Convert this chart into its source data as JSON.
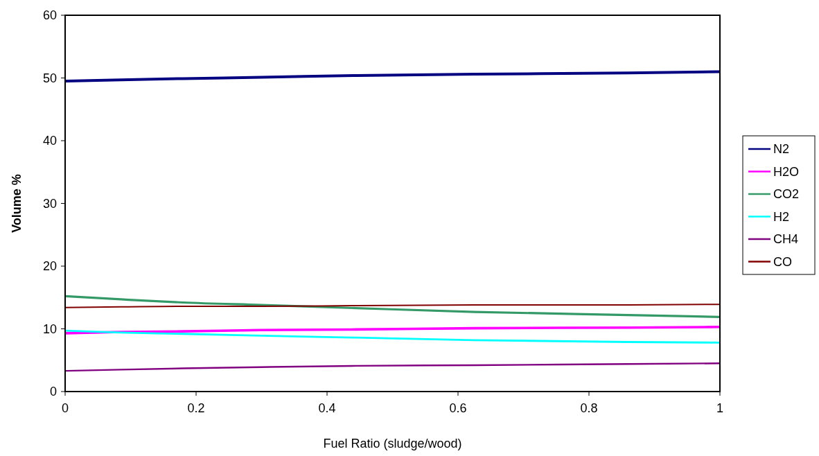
{
  "chart_data": {
    "type": "line",
    "xlabel": "Fuel Ratio (sludge/wood)",
    "ylabel": "Volume %",
    "xlim": [
      0,
      1
    ],
    "xticks": [
      0,
      0.2,
      0.4,
      0.6,
      0.8,
      1
    ],
    "ylim": [
      0,
      60
    ],
    "yticks": [
      0,
      10,
      20,
      30,
      40,
      50,
      60
    ],
    "x": [
      0,
      0.085,
      0.18,
      0.3,
      0.445,
      0.625,
      0.86,
      1
    ],
    "legend": "right",
    "grid": false,
    "marker": "none",
    "line_style": "solid",
    "series": [
      {
        "name": "N2",
        "color": "#000080",
        "values": [
          49.5,
          49.7,
          49.9,
          50.1,
          50.4,
          50.6,
          50.8,
          51
        ]
      },
      {
        "name": "H2O",
        "color": "#ff00ff",
        "values": [
          9.3,
          9.5,
          9.6,
          9.8,
          9.9,
          10.1,
          10.2,
          10.3
        ]
      },
      {
        "name": "CO2",
        "color": "#339966",
        "values": [
          15.2,
          14.7,
          14.2,
          13.8,
          13.3,
          12.7,
          12.2,
          11.9
        ]
      },
      {
        "name": "H2",
        "color": "#00ffff",
        "values": [
          9.7,
          9.4,
          9.2,
          8.9,
          8.6,
          8.2,
          7.9,
          7.8
        ]
      },
      {
        "name": "CH4",
        "color": "#800080",
        "values": [
          3.3,
          3.5,
          3.7,
          3.9,
          4.1,
          4.2,
          4.4,
          4.5
        ]
      },
      {
        "name": "CO",
        "color": "#800000",
        "values": [
          13.4,
          13.5,
          13.6,
          13.6,
          13.7,
          13.8,
          13.8,
          13.9
        ]
      }
    ]
  }
}
